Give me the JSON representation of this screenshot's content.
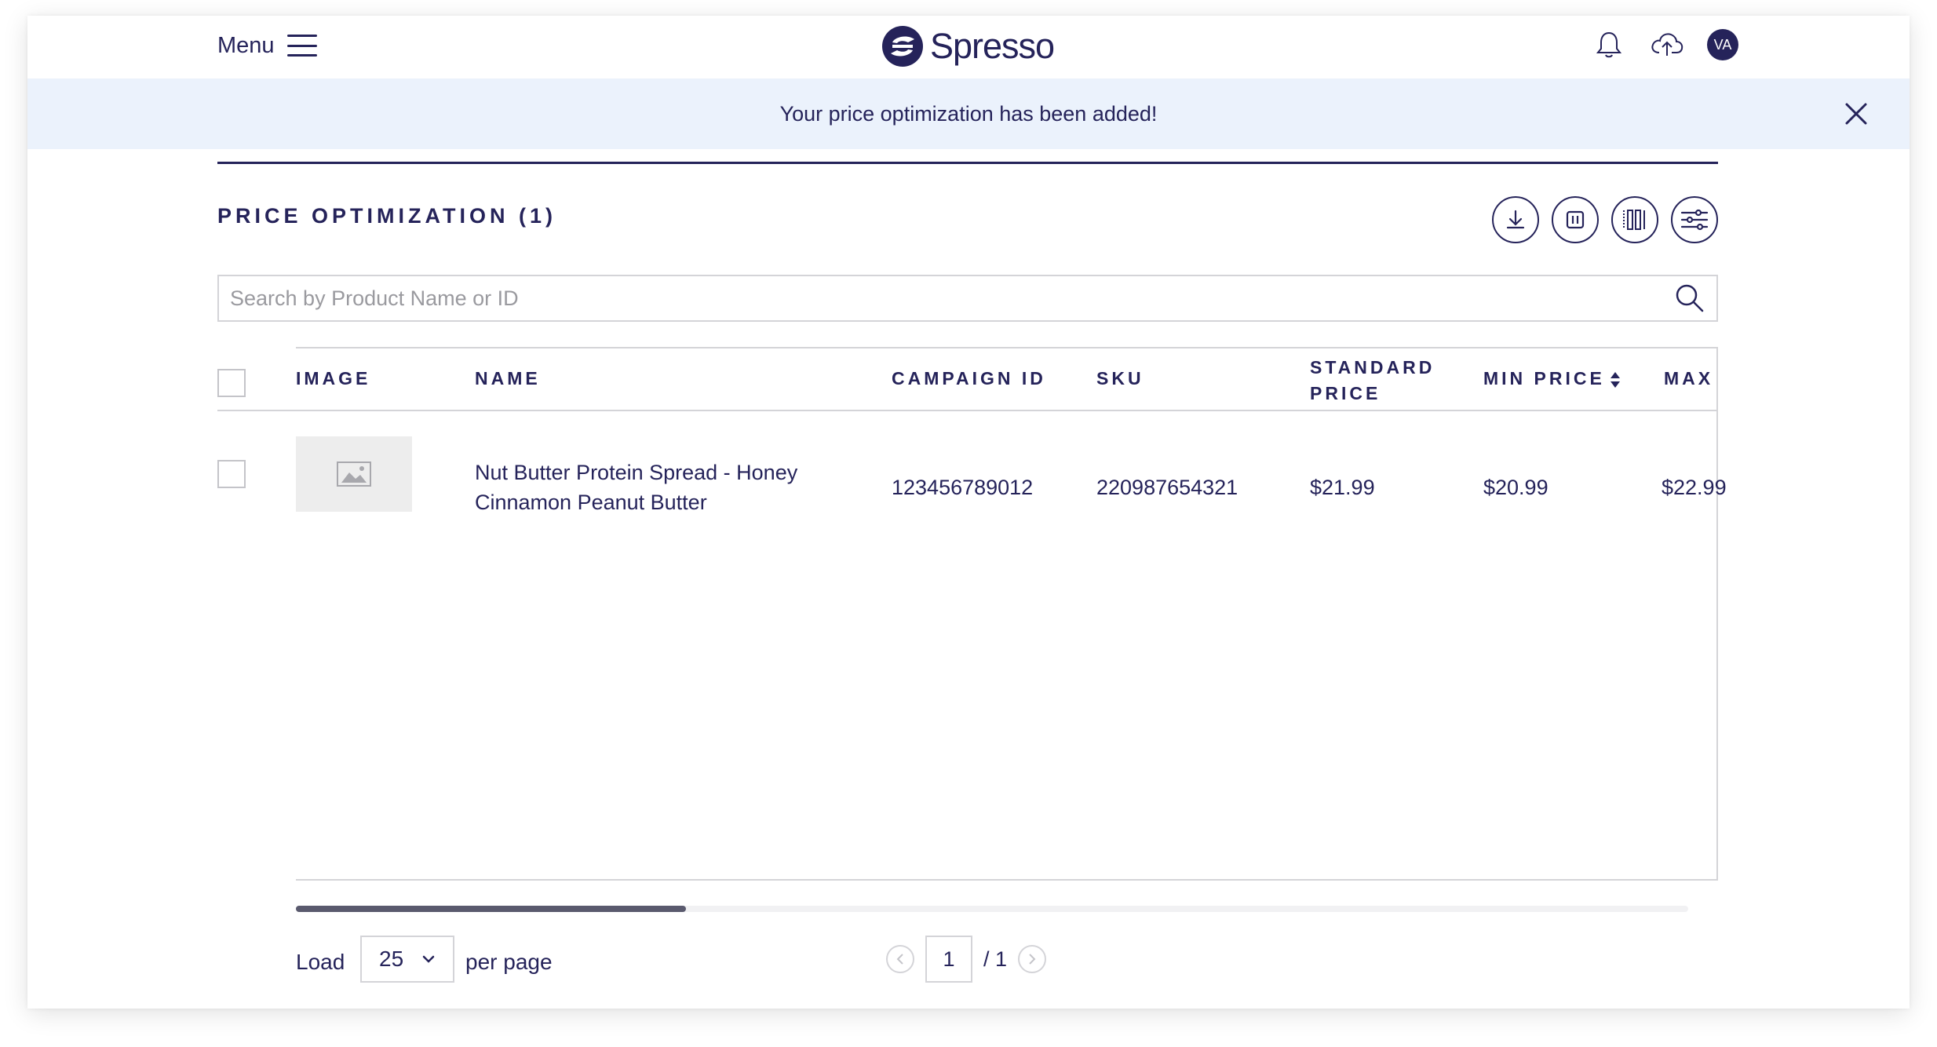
{
  "header": {
    "menu_label": "Menu",
    "brand": "Spresso",
    "avatar_initials": "VA"
  },
  "banner": {
    "message": "Your price optimization has been added!"
  },
  "section": {
    "title": "PRICE OPTIMIZATION (1)"
  },
  "search": {
    "placeholder": "Search by Product Name or ID"
  },
  "table": {
    "columns": {
      "image": "IMAGE",
      "name": "NAME",
      "campaign_id": "CAMPAIGN ID",
      "sku": "SKU",
      "standard_price_1": "STANDARD",
      "standard_price_2": "PRICE",
      "min_price": "MIN PRICE",
      "max": "MAX"
    },
    "rows": [
      {
        "name_line1": "Nut Butter Protein Spread - Honey",
        "name_line2": "Cinnamon Peanut Butter",
        "campaign_id": "123456789012",
        "sku": "220987654321",
        "standard_price": "$21.99",
        "min_price": "$20.99",
        "max_price": "$22.99"
      }
    ]
  },
  "scroll": {
    "position_fraction": 0.28
  },
  "footer": {
    "load_label": "Load",
    "per_page_value": "25",
    "per_page_label": "per page",
    "current_page": "1",
    "total_pages": "/ 1"
  },
  "colors": {
    "primary": "#25235a",
    "banner_bg": "#ebf2fc",
    "border": "#d4d4d8"
  }
}
